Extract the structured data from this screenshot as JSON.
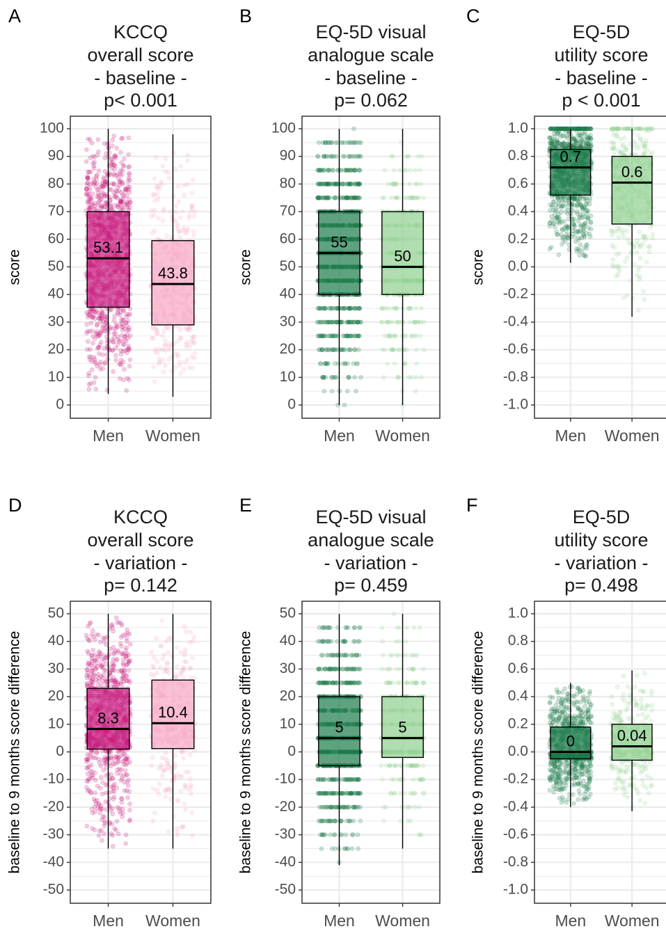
{
  "colors": {
    "pink_men": "#c7197d",
    "pink_women": "#f6a5c5",
    "green_men": "#1b7a4a",
    "green_women": "#8fd08f",
    "grid": "#ebebeb",
    "axis_text": "#4d4d4d",
    "title_text": "#1a1a1a"
  },
  "chart_data": [
    {
      "type": "box",
      "panel_label": "A",
      "title": [
        "KCCQ",
        "overall score",
        "- baseline -",
        "p< 0.001"
      ],
      "ylabel": "score",
      "categories": [
        "Men",
        "Women"
      ],
      "ylim": [
        0,
        100
      ],
      "yticks": [
        0,
        10,
        20,
        30,
        40,
        50,
        60,
        70,
        80,
        90,
        100
      ],
      "tick_labels": [
        "0",
        "10",
        "20",
        "30",
        "40",
        "50",
        "60",
        "70",
        "80",
        "90",
        "100"
      ],
      "palette": "pink",
      "series": [
        {
          "name": "Men",
          "min": 4,
          "q1": 35.4,
          "median": 53.1,
          "q3": 70,
          "max": 100,
          "label": "53.1",
          "n_points": 900
        },
        {
          "name": "Women",
          "min": 3,
          "q1": 29,
          "median": 43.8,
          "q3": 59.5,
          "max": 98,
          "label": "43.8",
          "n_points": 320
        }
      ]
    },
    {
      "type": "box",
      "panel_label": "B",
      "title": [
        "EQ-5D visual",
        "analogue scale",
        "- baseline -",
        "p= 0.062"
      ],
      "ylabel": "score",
      "categories": [
        "Men",
        "Women"
      ],
      "ylim": [
        0,
        100
      ],
      "yticks": [
        0,
        10,
        20,
        30,
        40,
        50,
        60,
        70,
        80,
        90,
        100
      ],
      "tick_labels": [
        "0",
        "10",
        "20",
        "30",
        "40",
        "50",
        "60",
        "70",
        "80",
        "90",
        "100"
      ],
      "palette": "green",
      "series": [
        {
          "name": "Men",
          "min": 0,
          "q1": 40,
          "median": 55,
          "q3": 70,
          "max": 100,
          "label": "55",
          "n_points": 900
        },
        {
          "name": "Women",
          "min": 0,
          "q1": 40,
          "median": 50,
          "q3": 70,
          "max": 100,
          "label": "50",
          "n_points": 320
        }
      ]
    },
    {
      "type": "box",
      "panel_label": "C",
      "title": [
        "EQ-5D",
        "utility score",
        "- baseline -",
        "p < 0.001"
      ],
      "ylabel": "score",
      "categories": [
        "Men",
        "Women"
      ],
      "ylim": [
        -1,
        1
      ],
      "yticks": [
        -1,
        -0.8,
        -0.6,
        -0.4,
        -0.2,
        0,
        0.2,
        0.4,
        0.6,
        0.8,
        1
      ],
      "tick_labels": [
        "-1.0",
        "-0.8",
        "-0.6",
        "-0.4",
        "-0.2",
        "0.0",
        "0.2",
        "0.4",
        "0.6",
        "0.8",
        "1.0"
      ],
      "palette": "green",
      "series": [
        {
          "name": "Men",
          "min": 0.03,
          "q1": 0.52,
          "median": 0.72,
          "q3": 0.85,
          "max": 1,
          "label": "0.7",
          "n_points": 900
        },
        {
          "name": "Women",
          "min": -0.36,
          "q1": 0.31,
          "median": 0.61,
          "q3": 0.8,
          "max": 1,
          "label": "0.6",
          "n_points": 320
        }
      ]
    },
    {
      "type": "box",
      "panel_label": "D",
      "title": [
        "KCCQ",
        "overall score",
        "- variation -",
        "p= 0.142"
      ],
      "ylabel": "baseline to 9 months score difference",
      "categories": [
        "Men",
        "Women"
      ],
      "ylim": [
        -50,
        50
      ],
      "yticks": [
        -50,
        -40,
        -30,
        -20,
        -10,
        0,
        10,
        20,
        30,
        40,
        50
      ],
      "tick_labels": [
        "-50",
        "-40",
        "-30",
        "-20",
        "-10",
        "0",
        "10",
        "20",
        "30",
        "40",
        "50"
      ],
      "palette": "pink",
      "series": [
        {
          "name": "Men",
          "min": -35,
          "q1": 1,
          "median": 8.3,
          "q3": 23,
          "max": 50,
          "label": "8.3",
          "n_points": 800
        },
        {
          "name": "Women",
          "min": -35,
          "q1": 1.2,
          "median": 10.4,
          "q3": 26,
          "max": 50,
          "label": "10.4",
          "n_points": 280
        }
      ]
    },
    {
      "type": "box",
      "panel_label": "E",
      "title": [
        "EQ-5D visual",
        "analogue scale",
        "- variation -",
        "p= 0.459"
      ],
      "ylabel": "baseline to 9 months score difference",
      "categories": [
        "Men",
        "Women"
      ],
      "ylim": [
        -50,
        50
      ],
      "yticks": [
        -50,
        -40,
        -30,
        -20,
        -10,
        0,
        10,
        20,
        30,
        40,
        50
      ],
      "tick_labels": [
        "-50",
        "-40",
        "-30",
        "-20",
        "-10",
        "0",
        "10",
        "20",
        "30",
        "40",
        "50"
      ],
      "palette": "green",
      "series": [
        {
          "name": "Men",
          "min": -41,
          "q1": -5,
          "median": 5,
          "q3": 20,
          "max": 50,
          "label": "5",
          "n_points": 800
        },
        {
          "name": "Women",
          "min": -35,
          "q1": -2,
          "median": 5,
          "q3": 20,
          "max": 50,
          "label": "5",
          "n_points": 280
        }
      ]
    },
    {
      "type": "box",
      "panel_label": "F",
      "title": [
        "EQ-5D",
        "utility score",
        "- variation -",
        "p= 0.498"
      ],
      "ylabel": "baseline to 9 months score difference",
      "categories": [
        "Men",
        "Women"
      ],
      "ylim": [
        -1,
        1
      ],
      "yticks": [
        -1,
        -0.8,
        -0.6,
        -0.4,
        -0.2,
        0,
        0.2,
        0.4,
        0.6,
        0.8,
        1
      ],
      "tick_labels": [
        "-1.0",
        "-0.8",
        "-0.6",
        "-0.4",
        "-0.2",
        "0.0",
        "0.2",
        "0.4",
        "0.6",
        "0.8",
        "1.0"
      ],
      "palette": "green",
      "series": [
        {
          "name": "Men",
          "min": -0.4,
          "q1": -0.05,
          "median": 0,
          "q3": 0.18,
          "max": 0.5,
          "label": "0",
          "n_points": 800
        },
        {
          "name": "Women",
          "min": -0.43,
          "q1": -0.06,
          "median": 0.04,
          "q3": 0.2,
          "max": 0.59,
          "label": "0.04",
          "n_points": 280
        }
      ]
    }
  ]
}
